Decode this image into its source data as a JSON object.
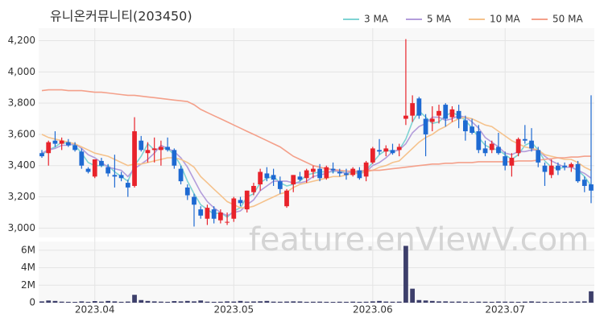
{
  "chart_data": [
    {
      "type": "candlestick",
      "title": "유니온커뮤니티(203450)",
      "watermark": "feature.enViewV.com",
      "categories": [
        null,
        null,
        null,
        null,
        null,
        null,
        null,
        null,
        "2023.04",
        null,
        null,
        null,
        null,
        null,
        null,
        null,
        null,
        null,
        null,
        null,
        null,
        null,
        null,
        null,
        null,
        null,
        null,
        null,
        null,
        "2023.05",
        null,
        null,
        null,
        null,
        null,
        null,
        null,
        null,
        null,
        null,
        null,
        null,
        null,
        null,
        null,
        null,
        null,
        null,
        null,
        null,
        "2023.06",
        null,
        null,
        null,
        null,
        null,
        null,
        null,
        null,
        null,
        null,
        null,
        null,
        null,
        null,
        null,
        null,
        null,
        null,
        null,
        "2023.07",
        null,
        null,
        null,
        null,
        null,
        null,
        null,
        null,
        null,
        null,
        null,
        null,
        null
      ],
      "open": [
        3480,
        3480,
        3560,
        3540,
        3550,
        3530,
        3490,
        3380,
        3330,
        3430,
        3390,
        3340,
        3340,
        3290,
        3270,
        3560,
        3480,
        3500,
        3500,
        3520,
        3500,
        3380,
        3260,
        3200,
        3120,
        3060,
        3120,
        3050,
        3040,
        3060,
        3180,
        3120,
        3230,
        3280,
        3350,
        3340,
        3300,
        3140,
        3280,
        3330,
        3320,
        3360,
        3380,
        3320,
        3380,
        3360,
        3350,
        3340,
        3370,
        3330,
        3420,
        3500,
        3490,
        3500,
        3500,
        3700,
        3720,
        3830,
        3700,
        3680,
        3720,
        3790,
        3710,
        3750,
        3690,
        3650,
        3620,
        3510,
        3500,
        3520,
        3460,
        3400,
        3480,
        3570,
        3560,
        3500,
        3400,
        3340,
        3400,
        3400,
        3390,
        3410,
        3310,
        3280
      ],
      "high": [
        3500,
        3560,
        3620,
        3580,
        3570,
        3550,
        3510,
        3390,
        3440,
        3450,
        3410,
        3470,
        3360,
        3310,
        3710,
        3590,
        3550,
        3580,
        3560,
        3580,
        3510,
        3400,
        3280,
        3220,
        3140,
        3150,
        3140,
        3120,
        3100,
        3200,
        3200,
        3240,
        3290,
        3380,
        3390,
        3380,
        3330,
        3250,
        3340,
        3360,
        3380,
        3400,
        3410,
        3400,
        3420,
        3380,
        3380,
        3390,
        3390,
        3430,
        3520,
        3570,
        3530,
        3540,
        3540,
        4210,
        3850,
        3840,
        3730,
        3780,
        3790,
        3800,
        3780,
        3790,
        3720,
        3700,
        3660,
        3560,
        3560,
        3610,
        3490,
        3480,
        3580,
        3660,
        3640,
        3520,
        3420,
        3440,
        3420,
        3420,
        3420,
        3430,
        3330,
        3850
      ],
      "low": [
        3450,
        3400,
        3520,
        3500,
        3520,
        3490,
        3380,
        3350,
        3320,
        3390,
        3330,
        3260,
        3300,
        3200,
        3260,
        3490,
        3420,
        3420,
        3400,
        3490,
        3380,
        3280,
        3180,
        3010,
        3060,
        3020,
        3030,
        3030,
        3020,
        3040,
        3140,
        3100,
        3210,
        3240,
        3300,
        3270,
        3220,
        3130,
        3230,
        3300,
        3290,
        3320,
        3300,
        3310,
        3350,
        3330,
        3310,
        3330,
        3310,
        3300,
        3410,
        3470,
        3460,
        3470,
        3460,
        3660,
        3680,
        3700,
        3460,
        3620,
        3670,
        3650,
        3680,
        3640,
        3560,
        3600,
        3480,
        3460,
        3480,
        3470,
        3370,
        3330,
        3460,
        3540,
        3490,
        3390,
        3270,
        3320,
        3340,
        3370,
        3360,
        3290,
        3230,
        3160
      ],
      "close": [
        3460,
        3550,
        3540,
        3560,
        3530,
        3500,
        3400,
        3360,
        3440,
        3400,
        3350,
        3330,
        3320,
        3260,
        3620,
        3500,
        3500,
        3510,
        3520,
        3500,
        3400,
        3300,
        3210,
        3150,
        3080,
        3130,
        3060,
        3100,
        3040,
        3190,
        3160,
        3240,
        3270,
        3360,
        3320,
        3310,
        3250,
        3240,
        3340,
        3310,
        3370,
        3380,
        3320,
        3390,
        3370,
        3350,
        3340,
        3380,
        3320,
        3420,
        3510,
        3490,
        3510,
        3480,
        3520,
        3720,
        3800,
        3720,
        3600,
        3700,
        3750,
        3700,
        3760,
        3700,
        3620,
        3610,
        3500,
        3480,
        3540,
        3480,
        3400,
        3450,
        3570,
        3560,
        3510,
        3420,
        3360,
        3400,
        3370,
        3390,
        3410,
        3300,
        3270,
        3240
      ],
      "up_color": "#e8232b",
      "down_color": "#1e6ad2",
      "lines": [
        {
          "name": "3 MA",
          "color": "#7fd3d3",
          "values": [
            3470,
            3500,
            3520,
            3550,
            3540,
            3530,
            3480,
            3420,
            3400,
            3400,
            3400,
            3360,
            3330,
            3300,
            3400,
            3460,
            3540,
            3500,
            3510,
            3510,
            3470,
            3400,
            3300,
            3220,
            3150,
            3120,
            3090,
            3100,
            3070,
            3110,
            3130,
            3200,
            3220,
            3290,
            3320,
            3330,
            3290,
            3270,
            3280,
            3300,
            3340,
            3350,
            3360,
            3360,
            3360,
            3370,
            3350,
            3360,
            3350,
            3370,
            3420,
            3470,
            3500,
            3490,
            3500,
            3570,
            3680,
            3750,
            3710,
            3670,
            3680,
            3720,
            3740,
            3720,
            3690,
            3640,
            3580,
            3530,
            3510,
            3500,
            3470,
            3440,
            3470,
            3530,
            3550,
            3500,
            3430,
            3390,
            3380,
            3390,
            3390,
            3370,
            3330,
            3270
          ]
        },
        {
          "name": "5 MA",
          "color": "#b39ddb",
          "values": [
            3480,
            3500,
            3510,
            3530,
            3530,
            3540,
            3510,
            3470,
            3450,
            3420,
            3390,
            3380,
            3370,
            3330,
            3380,
            3410,
            3440,
            3480,
            3530,
            3510,
            3490,
            3450,
            3390,
            3310,
            3230,
            3170,
            3130,
            3100,
            3080,
            3100,
            3110,
            3150,
            3180,
            3240,
            3270,
            3300,
            3300,
            3300,
            3290,
            3290,
            3300,
            3330,
            3340,
            3350,
            3370,
            3360,
            3350,
            3370,
            3350,
            3360,
            3400,
            3420,
            3450,
            3490,
            3500,
            3540,
            3610,
            3650,
            3670,
            3710,
            3710,
            3690,
            3700,
            3720,
            3710,
            3680,
            3640,
            3580,
            3550,
            3520,
            3480,
            3470,
            3490,
            3490,
            3500,
            3500,
            3460,
            3430,
            3410,
            3390,
            3390,
            3370,
            3350,
            3320
          ]
        },
        {
          "name": "10 MA",
          "color": "#f5c28c",
          "values": [
            3600,
            3580,
            3570,
            3560,
            3550,
            3540,
            3520,
            3500,
            3480,
            3470,
            3460,
            3440,
            3420,
            3400,
            3410,
            3410,
            3420,
            3430,
            3440,
            3450,
            3450,
            3440,
            3420,
            3390,
            3330,
            3290,
            3250,
            3210,
            3170,
            3150,
            3130,
            3130,
            3140,
            3160,
            3180,
            3200,
            3220,
            3230,
            3260,
            3280,
            3290,
            3300,
            3310,
            3320,
            3330,
            3330,
            3340,
            3350,
            3350,
            3360,
            3370,
            3390,
            3400,
            3420,
            3430,
            3470,
            3510,
            3550,
            3580,
            3600,
            3630,
            3650,
            3680,
            3700,
            3710,
            3700,
            3680,
            3660,
            3650,
            3620,
            3590,
            3560,
            3540,
            3520,
            3510,
            3500,
            3470,
            3460,
            3450,
            3440,
            3440,
            3420,
            3390,
            3370
          ]
        },
        {
          "name": "50 MA",
          "color": "#f4a08a",
          "values": [
            3880,
            3885,
            3885,
            3885,
            3880,
            3880,
            3880,
            3875,
            3870,
            3870,
            3865,
            3860,
            3855,
            3850,
            3850,
            3845,
            3840,
            3835,
            3830,
            3825,
            3820,
            3815,
            3810,
            3790,
            3760,
            3740,
            3720,
            3700,
            3680,
            3660,
            3640,
            3620,
            3600,
            3580,
            3560,
            3540,
            3520,
            3490,
            3460,
            3440,
            3420,
            3400,
            3390,
            3380,
            3375,
            3370,
            3365,
            3365,
            3365,
            3370,
            3370,
            3370,
            3375,
            3380,
            3385,
            3390,
            3395,
            3400,
            3405,
            3410,
            3410,
            3415,
            3415,
            3420,
            3420,
            3420,
            3425,
            3425,
            3425,
            3425,
            3425,
            3425,
            3430,
            3430,
            3430,
            3435,
            3440,
            3445,
            3450,
            3450,
            3455,
            3455,
            3460,
            3460
          ]
        }
      ],
      "legend": "top-right",
      "grid": true,
      "ylim": [
        2940,
        4280
      ],
      "yticks": [
        {
          "value": 3000,
          "label": "3,000"
        },
        {
          "value": 3200,
          "label": "3,200"
        },
        {
          "value": 3400,
          "label": "3,400"
        },
        {
          "value": 3600,
          "label": "3,600"
        },
        {
          "value": 3800,
          "label": "3,800"
        },
        {
          "value": 4000,
          "label": "4,000"
        },
        {
          "value": 4200,
          "label": "4,200"
        }
      ]
    },
    {
      "type": "bar",
      "color": "#3d3f6b",
      "values": [
        150000,
        250000,
        200000,
        120000,
        100000,
        90000,
        150000,
        100000,
        180000,
        120000,
        200000,
        150000,
        100000,
        130000,
        900000,
        300000,
        200000,
        150000,
        120000,
        100000,
        180000,
        150000,
        200000,
        150000,
        250000,
        120000,
        100000,
        110000,
        150000,
        130000,
        200000,
        120000,
        140000,
        160000,
        200000,
        120000,
        110000,
        130000,
        150000,
        140000,
        100000,
        110000,
        120000,
        100000,
        90000,
        110000,
        100000,
        120000,
        100000,
        110000,
        150000,
        200000,
        130000,
        110000,
        120000,
        6500000,
        1600000,
        300000,
        250000,
        200000,
        150000,
        150000,
        120000,
        130000,
        110000,
        100000,
        120000,
        110000,
        100000,
        130000,
        120000,
        110000,
        100000,
        120000,
        150000,
        110000,
        100000,
        90000,
        110000,
        100000,
        120000,
        130000,
        150000,
        1300000
      ],
      "ylim": [
        0,
        7000000
      ],
      "yticks": [
        0,
        {
          "value": 2000000,
          "label": "2M"
        },
        {
          "value": 4000000,
          "label": "4M"
        },
        {
          "value": 6000000,
          "label": "6M"
        }
      ],
      "grid": true
    }
  ]
}
